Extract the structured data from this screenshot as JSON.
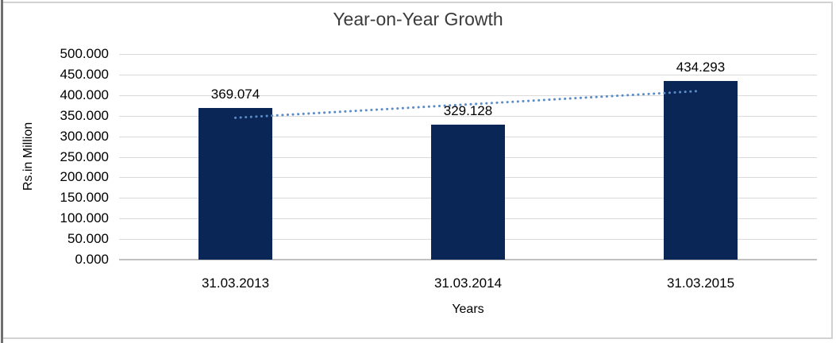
{
  "chart_data": {
    "type": "bar",
    "title": "Year-on-Year Growth",
    "categories": [
      "31.03.2013",
      "31.03.2014",
      "31.03.2015"
    ],
    "values": [
      369.074,
      329.128,
      434.293
    ],
    "data_labels": [
      "369.074",
      "329.128",
      "434.293"
    ],
    "xlabel": "Years",
    "ylabel": "Rs.in Million",
    "ylim": [
      0,
      500
    ],
    "ytick_step": 50,
    "ytick_labels": [
      "500.000",
      "450.000",
      "400.000",
      "350.000",
      "300.000",
      "250.000",
      "200.000",
      "150.000",
      "100.000",
      "50.000",
      "0.000"
    ],
    "grid": true,
    "legend_position": "none",
    "trendline": {
      "type": "linear",
      "style": "dotted"
    },
    "colors": {
      "bar": "#0a2656",
      "trendline": "#5a8cc8",
      "gridline": "#dadada",
      "axis_line": "#c0c0c0",
      "title_text": "#3b3b3b",
      "label_text": "#000000"
    }
  }
}
